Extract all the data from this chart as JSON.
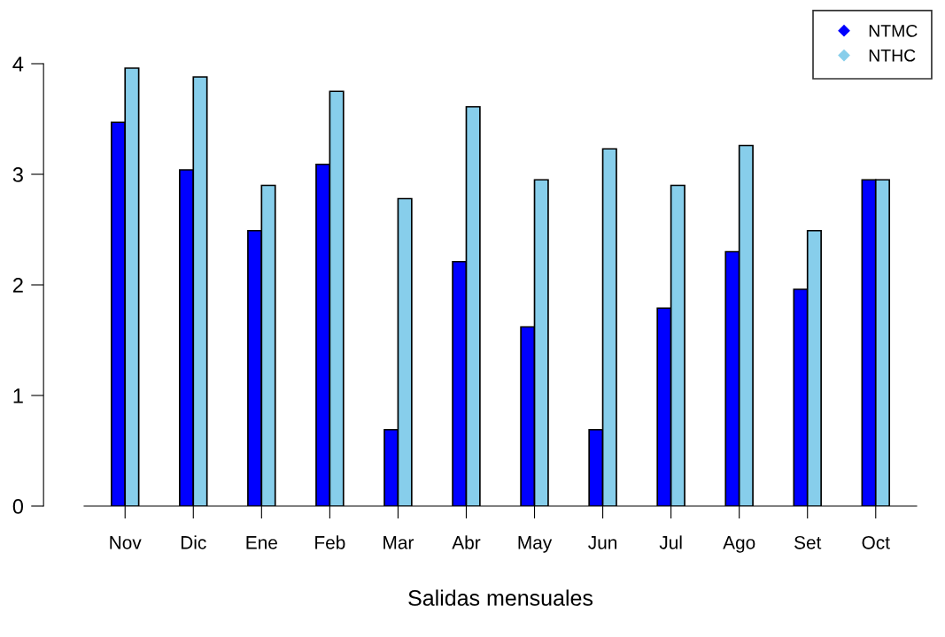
{
  "chart_data": {
    "type": "bar",
    "xlabel": "Salidas mensuales",
    "categories": [
      "Nov",
      "Dic",
      "Ene",
      "Feb",
      "Mar",
      "Abr",
      "May",
      "Jun",
      "Jul",
      "Ago",
      "Set",
      "Oct"
    ],
    "series": [
      {
        "name": "NTMC",
        "color": "#0000ff",
        "values": [
          3.47,
          3.04,
          2.49,
          3.09,
          0.69,
          2.21,
          1.62,
          0.69,
          1.79,
          2.3,
          1.96,
          2.95
        ]
      },
      {
        "name": "NTHC",
        "color": "#87ceeb",
        "values": [
          3.96,
          3.88,
          2.9,
          3.75,
          2.78,
          3.61,
          2.95,
          3.23,
          2.9,
          3.26,
          2.49,
          2.95
        ]
      }
    ],
    "ylim": [
      0,
      4
    ],
    "yticks": [
      0,
      1,
      2,
      3,
      4
    ],
    "grid": false,
    "legend": "top right"
  }
}
